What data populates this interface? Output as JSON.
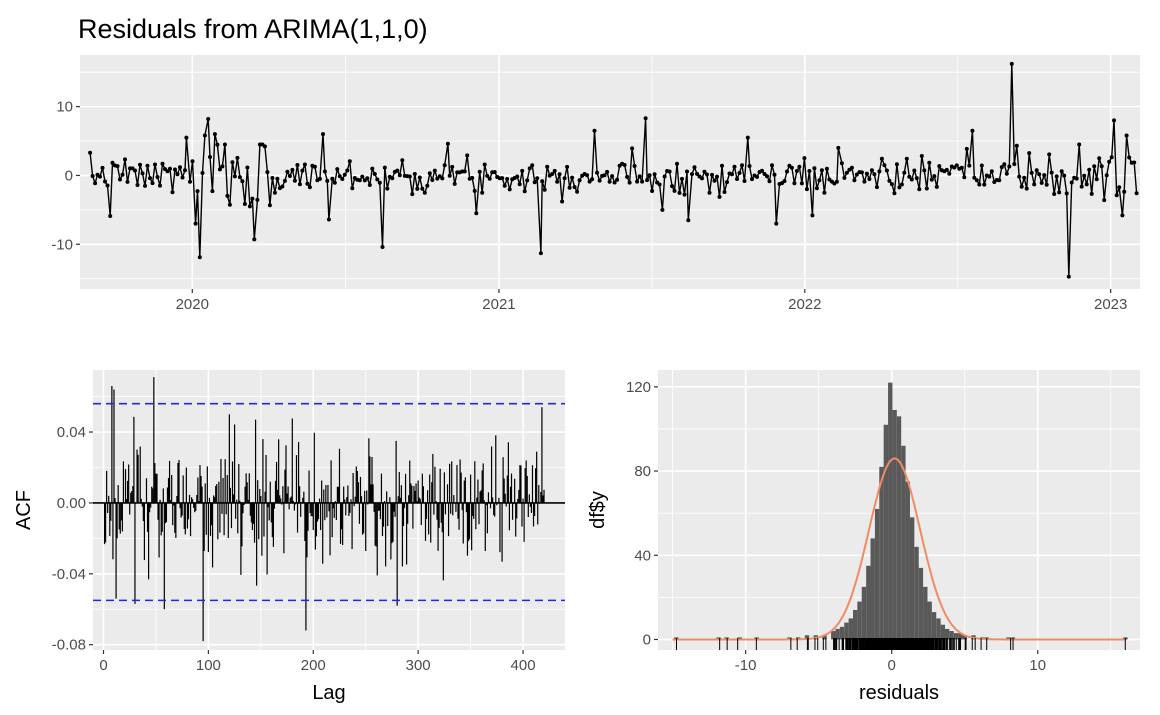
{
  "chart_title": "Residuals from ARIMA(1,1,0)",
  "colors": {
    "panel_background": "#ebebeb",
    "grid": "#ffffff",
    "series": "#000000",
    "confidence_band": "#2525e8",
    "histogram_fill": "#595959",
    "density_curve": "#f08c64",
    "tick_text": "#4d4d4d"
  },
  "chart_data": [
    {
      "type": "line",
      "panel": "residual-time-series",
      "markers": true,
      "x_range": [
        "2019-08-20",
        "2023-02-05"
      ],
      "ylim": [
        -16.5,
        17.5
      ],
      "yticks": [
        -10,
        0,
        10
      ],
      "ytick_labels": [
        "-10",
        "0",
        "10"
      ],
      "xticks": [
        "2020-01-01",
        "2021-01-01",
        "2022-01-01",
        "2023-01-01"
      ],
      "xtick_labels": [
        "2020",
        "2021",
        "2022",
        "2023"
      ],
      "grid": true,
      "data_start": "2019-09-01",
      "data_end": "2023-02-01",
      "n_points": 420,
      "notable_points": [
        {
          "x": "2019-09-25",
          "y": -5.9
        },
        {
          "x": "2019-12-25",
          "y": 5.5
        },
        {
          "x": "2020-01-05",
          "y": -7.0
        },
        {
          "x": "2020-01-10",
          "y": -11.9
        },
        {
          "x": "2020-01-16",
          "y": 5.8
        },
        {
          "x": "2020-01-20",
          "y": 8.2
        },
        {
          "x": "2020-01-28",
          "y": 6.0
        },
        {
          "x": "2020-03-15",
          "y": -9.3
        },
        {
          "x": "2020-06-05",
          "y": 6.0
        },
        {
          "x": "2020-06-12",
          "y": -6.4
        },
        {
          "x": "2020-08-15",
          "y": -10.4
        },
        {
          "x": "2020-11-01",
          "y": 4.6
        },
        {
          "x": "2020-12-05",
          "y": -5.5
        },
        {
          "x": "2021-02-20",
          "y": -11.3
        },
        {
          "x": "2021-04-25",
          "y": 6.5
        },
        {
          "x": "2021-06-25",
          "y": 8.3
        },
        {
          "x": "2021-07-15",
          "y": -5.0
        },
        {
          "x": "2021-08-15",
          "y": -6.5
        },
        {
          "x": "2021-10-25",
          "y": 5.5
        },
        {
          "x": "2021-11-28",
          "y": -7.0
        },
        {
          "x": "2022-01-10",
          "y": -5.8
        },
        {
          "x": "2022-02-10",
          "y": 4.0
        },
        {
          "x": "2022-07-20",
          "y": 6.5
        },
        {
          "x": "2022-09-05",
          "y": 16.2
        },
        {
          "x": "2022-11-12",
          "y": -14.7
        },
        {
          "x": "2023-01-05",
          "y": 8.0
        },
        {
          "x": "2023-01-15",
          "y": -5.8
        },
        {
          "x": "2023-01-20",
          "y": 5.8
        }
      ]
    },
    {
      "type": "bar",
      "panel": "acf",
      "xlabel": "Lag",
      "ylabel": "ACF",
      "xlim": [
        -10,
        440
      ],
      "ylim": [
        -0.083,
        0.075
      ],
      "xticks": [
        0,
        100,
        200,
        300,
        400
      ],
      "xtick_labels": [
        "0",
        "100",
        "200",
        "300",
        "400"
      ],
      "yticks": [
        -0.08,
        -0.04,
        0.0,
        0.04
      ],
      "ytick_labels": [
        "-0.08",
        "-0.04",
        "0.00",
        "0.04"
      ],
      "confidence_bounds": [
        0.056,
        -0.055
      ],
      "grid": true,
      "max_lag": 420,
      "notable_lags": [
        {
          "lag": 8,
          "acf": 0.066
        },
        {
          "lag": 10,
          "acf": 0.064
        },
        {
          "lag": 12,
          "acf": -0.054
        },
        {
          "lag": 30,
          "acf": -0.057
        },
        {
          "lag": 48,
          "acf": 0.071
        },
        {
          "lag": 58,
          "acf": -0.06
        },
        {
          "lag": 95,
          "acf": -0.078
        },
        {
          "lag": 193,
          "acf": -0.072
        },
        {
          "lag": 280,
          "acf": -0.058
        },
        {
          "lag": 418,
          "acf": 0.054
        }
      ]
    },
    {
      "type": "bar",
      "panel": "residual-histogram",
      "xlabel": "residuals",
      "ylabel": "df$y",
      "xlim": [
        -16,
        17
      ],
      "ylim": [
        -5,
        128
      ],
      "xticks": [
        -10,
        0,
        10
      ],
      "xtick_labels": [
        "-10",
        "0",
        "10"
      ],
      "yticks": [
        0,
        40,
        80,
        120
      ],
      "ytick_labels": [
        "0",
        "40",
        "80",
        "120"
      ],
      "bin_width": 0.3,
      "grid": true,
      "density_curve": {
        "mean": 0.2,
        "sd": 1.75,
        "peak": 86
      },
      "rug": true,
      "histogram_counts_by_bin_center": [
        {
          "x": -14.75,
          "count": 1
        },
        {
          "x": -11.85,
          "count": 1
        },
        {
          "x": -11.3,
          "count": 1
        },
        {
          "x": -10.4,
          "count": 1
        },
        {
          "x": -9.25,
          "count": 1
        },
        {
          "x": -7.0,
          "count": 1
        },
        {
          "x": -6.4,
          "count": 1
        },
        {
          "x": -5.8,
          "count": 2
        },
        {
          "x": -5.2,
          "count": 2
        },
        {
          "x": -4.6,
          "count": 2
        },
        {
          "x": -4.0,
          "count": 4
        },
        {
          "x": -3.7,
          "count": 5
        },
        {
          "x": -3.4,
          "count": 6
        },
        {
          "x": -3.1,
          "count": 8
        },
        {
          "x": -2.8,
          "count": 10
        },
        {
          "x": -2.5,
          "count": 14
        },
        {
          "x": -2.2,
          "count": 18
        },
        {
          "x": -1.9,
          "count": 25
        },
        {
          "x": -1.6,
          "count": 35
        },
        {
          "x": -1.3,
          "count": 48
        },
        {
          "x": -1.0,
          "count": 62
        },
        {
          "x": -0.7,
          "count": 82
        },
        {
          "x": -0.4,
          "count": 102
        },
        {
          "x": -0.1,
          "count": 122
        },
        {
          "x": 0.2,
          "count": 109
        },
        {
          "x": 0.5,
          "count": 106
        },
        {
          "x": 0.8,
          "count": 92
        },
        {
          "x": 1.1,
          "count": 75
        },
        {
          "x": 1.4,
          "count": 58
        },
        {
          "x": 1.7,
          "count": 44
        },
        {
          "x": 2.0,
          "count": 34
        },
        {
          "x": 2.3,
          "count": 25
        },
        {
          "x": 2.6,
          "count": 18
        },
        {
          "x": 2.9,
          "count": 13
        },
        {
          "x": 3.2,
          "count": 10
        },
        {
          "x": 3.5,
          "count": 7
        },
        {
          "x": 3.8,
          "count": 5
        },
        {
          "x": 4.1,
          "count": 4
        },
        {
          "x": 4.4,
          "count": 3
        },
        {
          "x": 4.7,
          "count": 3
        },
        {
          "x": 5.0,
          "count": 2
        },
        {
          "x": 5.6,
          "count": 2
        },
        {
          "x": 6.2,
          "count": 1
        },
        {
          "x": 6.5,
          "count": 1
        },
        {
          "x": 8.0,
          "count": 1
        },
        {
          "x": 8.3,
          "count": 1
        },
        {
          "x": 16.0,
          "count": 1
        }
      ]
    }
  ]
}
